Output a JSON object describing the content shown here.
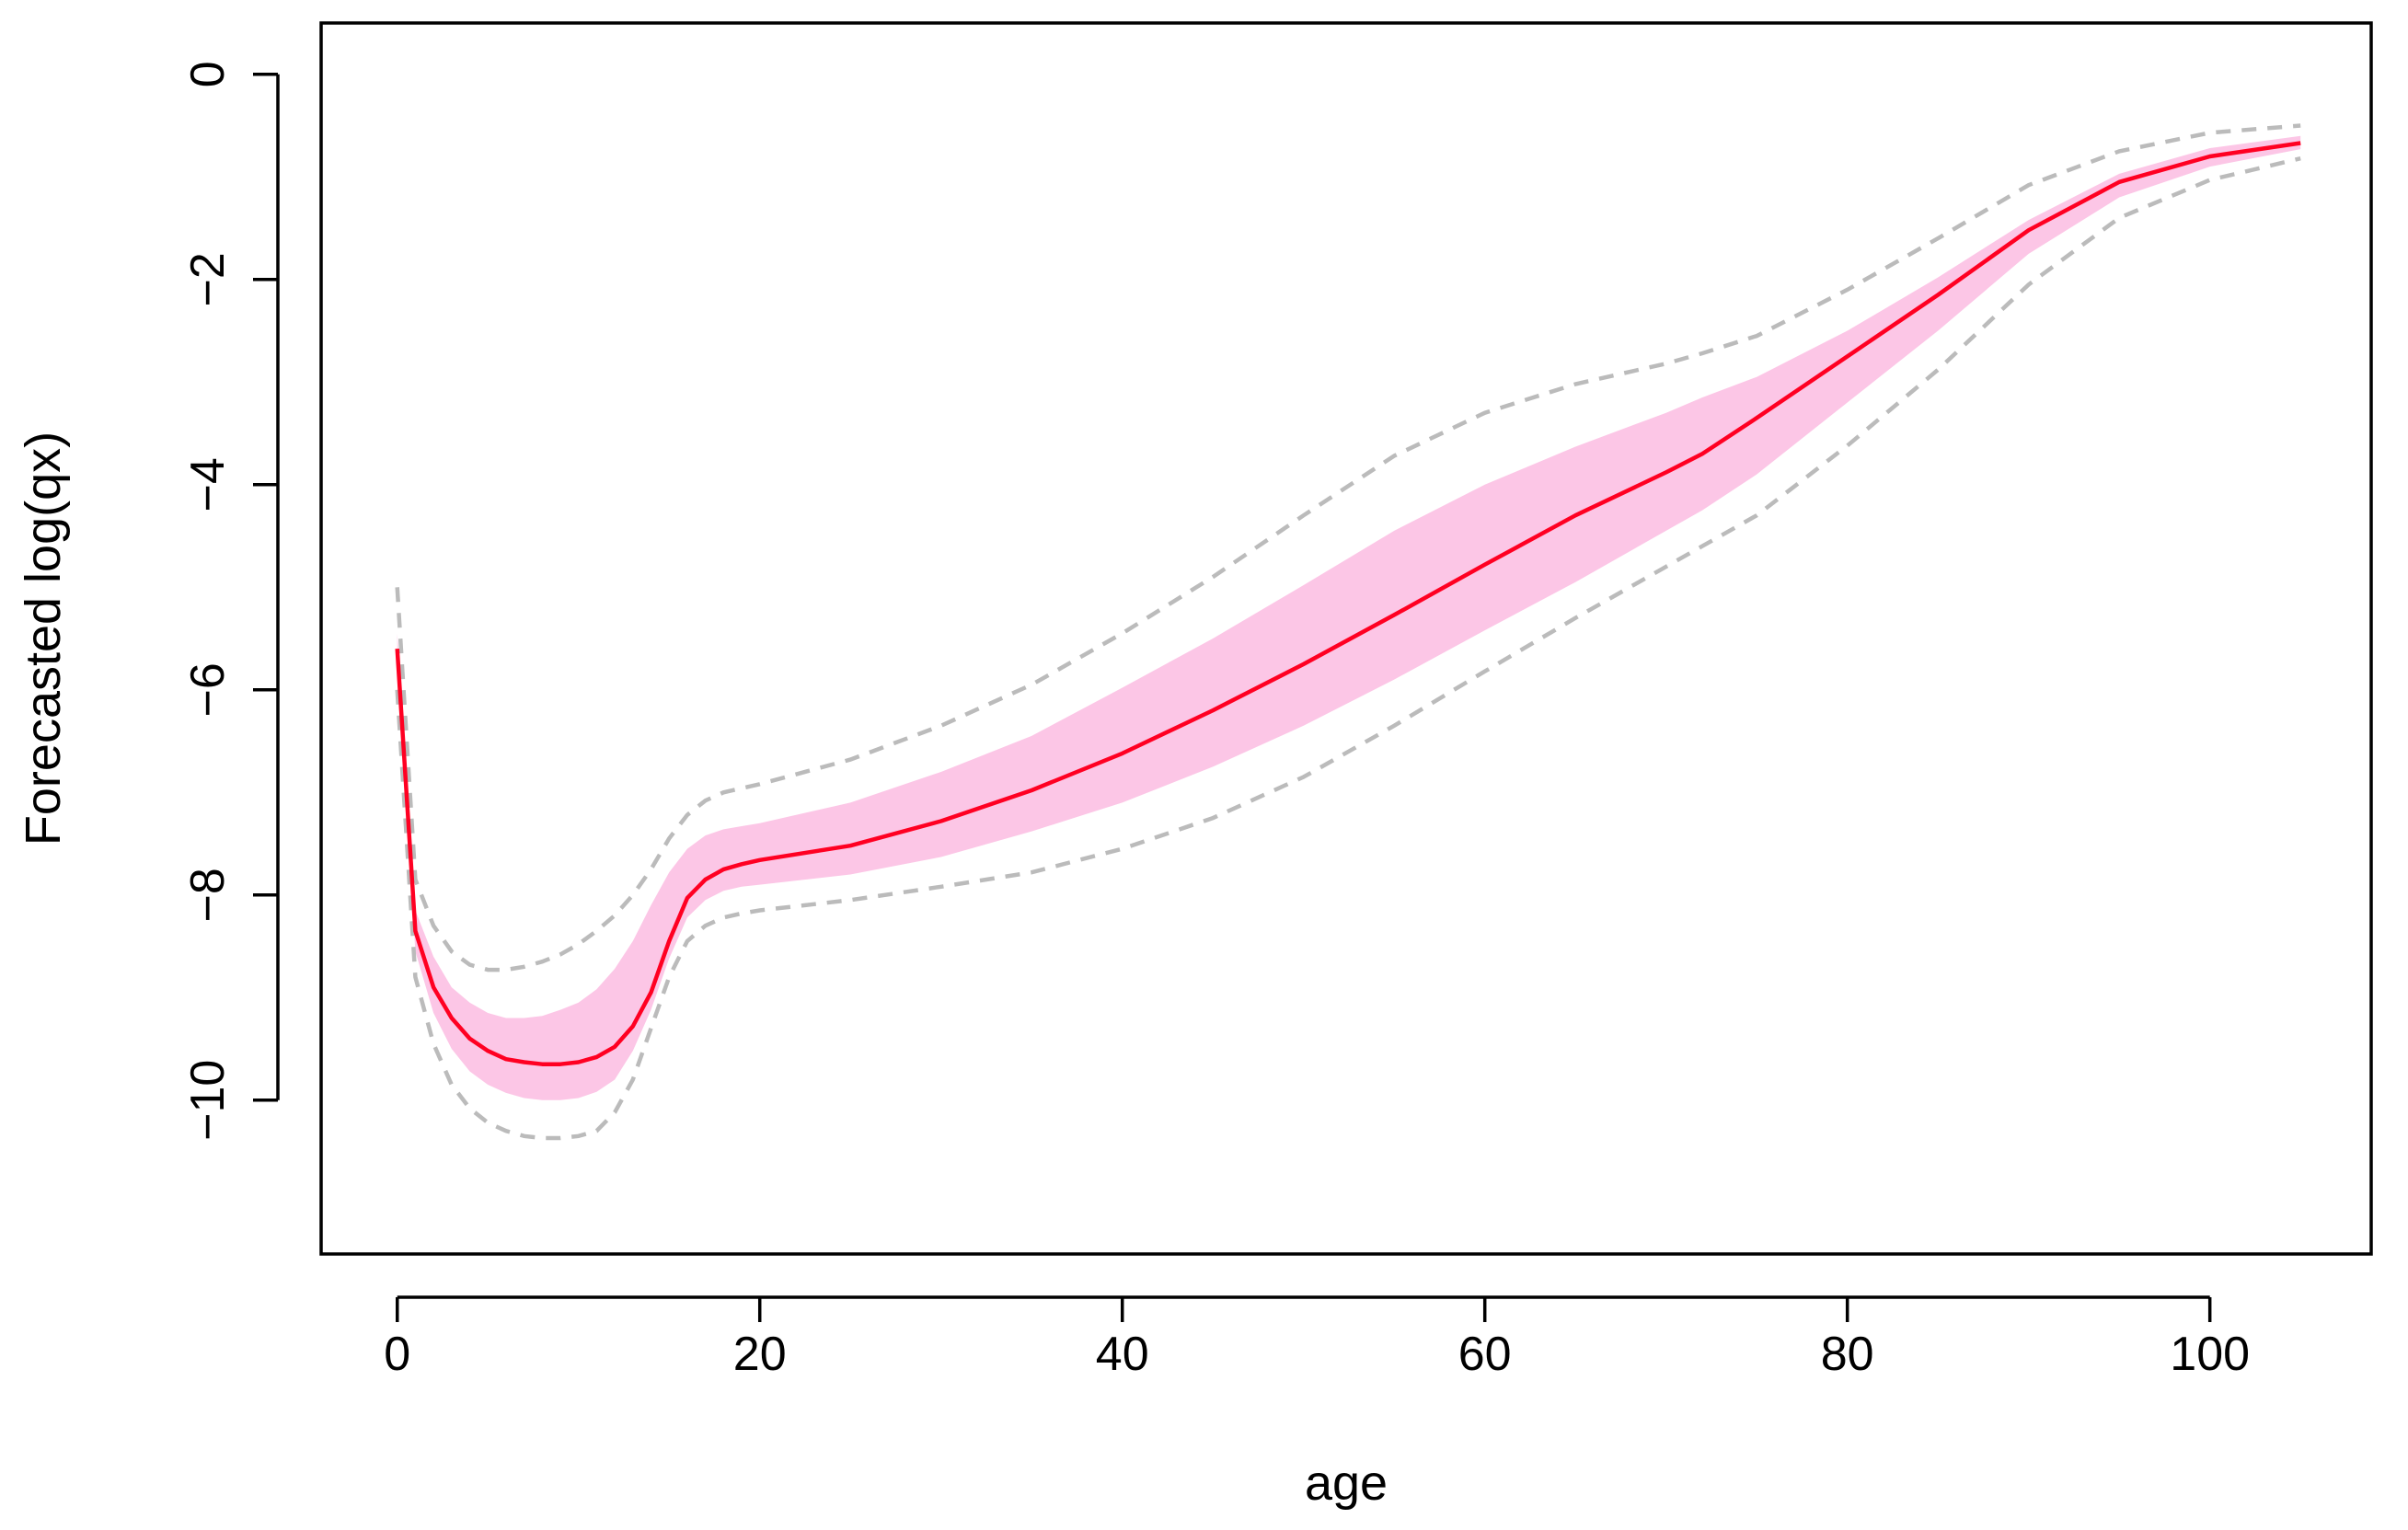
{
  "chart_data": {
    "type": "line",
    "title": "",
    "xlabel": "age",
    "ylabel": "Forecasted log(qx)",
    "xlim": [
      -4.2,
      108.9
    ],
    "ylim": [
      -11.5,
      0.5
    ],
    "x_ticks": [
      0,
      20,
      40,
      60,
      80,
      100
    ],
    "y_ticks": [
      0,
      -2,
      -4,
      -6,
      -8,
      -10
    ],
    "x_tick_labels": [
      "0",
      "20",
      "40",
      "60",
      "80",
      "100"
    ],
    "y_tick_labels": [
      "0",
      "−2",
      "−4",
      "−6",
      "−8",
      "−10"
    ],
    "grid": false,
    "legend": "none",
    "colors": {
      "forecast": "#ff0022",
      "inner_band": "#fcc6e6",
      "outer_band": "#bbbbbb"
    },
    "series": [
      {
        "role": "forecast",
        "x": [
          0,
          1,
          2,
          3,
          4,
          5,
          6,
          7,
          8,
          9,
          10,
          11,
          12,
          13,
          14,
          15,
          16,
          17,
          18,
          19,
          20,
          25,
          30,
          35,
          40,
          45,
          50,
          55,
          60,
          65,
          70,
          72,
          75,
          80,
          85,
          90,
          95,
          100,
          105
        ],
        "values": [
          -5.6,
          -8.35,
          -8.9,
          -9.2,
          -9.4,
          -9.52,
          -9.6,
          -9.63,
          -9.65,
          -9.65,
          -9.63,
          -9.58,
          -9.48,
          -9.28,
          -8.95,
          -8.45,
          -8.03,
          -7.85,
          -7.75,
          -7.7,
          -7.66,
          -7.52,
          -7.28,
          -6.98,
          -6.62,
          -6.2,
          -5.75,
          -5.27,
          -4.78,
          -4.3,
          -3.88,
          -3.7,
          -3.35,
          -2.75,
          -2.15,
          -1.52,
          -1.05,
          -0.8,
          -0.67
        ]
      },
      {
        "role": "inner_band_upper",
        "x": [
          0,
          1,
          2,
          3,
          4,
          5,
          6,
          7,
          8,
          9,
          10,
          11,
          12,
          13,
          14,
          15,
          16,
          17,
          18,
          19,
          20,
          25,
          30,
          35,
          40,
          45,
          50,
          55,
          60,
          65,
          70,
          72,
          75,
          80,
          85,
          90,
          95,
          100,
          105
        ],
        "values": [
          -5.45,
          -8.15,
          -8.6,
          -8.9,
          -9.05,
          -9.15,
          -9.2,
          -9.2,
          -9.18,
          -9.12,
          -9.05,
          -8.92,
          -8.72,
          -8.45,
          -8.1,
          -7.78,
          -7.55,
          -7.42,
          -7.36,
          -7.33,
          -7.3,
          -7.1,
          -6.8,
          -6.45,
          -5.98,
          -5.5,
          -4.98,
          -4.45,
          -4.0,
          -3.63,
          -3.3,
          -3.15,
          -2.95,
          -2.5,
          -1.98,
          -1.42,
          -0.97,
          -0.72,
          -0.6
        ]
      },
      {
        "role": "inner_band_lower",
        "x": [
          0,
          1,
          2,
          3,
          4,
          5,
          6,
          7,
          8,
          9,
          10,
          11,
          12,
          13,
          14,
          15,
          16,
          17,
          18,
          19,
          20,
          25,
          30,
          35,
          40,
          45,
          50,
          55,
          60,
          65,
          70,
          72,
          75,
          80,
          85,
          90,
          95,
          100,
          105
        ],
        "values": [
          -5.75,
          -8.55,
          -9.15,
          -9.5,
          -9.72,
          -9.85,
          -9.93,
          -9.98,
          -10.0,
          -10.0,
          -9.98,
          -9.92,
          -9.8,
          -9.52,
          -9.12,
          -8.62,
          -8.22,
          -8.05,
          -7.96,
          -7.92,
          -7.9,
          -7.8,
          -7.63,
          -7.38,
          -7.1,
          -6.75,
          -6.35,
          -5.9,
          -5.42,
          -4.95,
          -4.45,
          -4.25,
          -3.9,
          -3.2,
          -2.5,
          -1.75,
          -1.2,
          -0.9,
          -0.73
        ]
      },
      {
        "role": "outer_band_upper",
        "x": [
          0,
          1,
          2,
          3,
          4,
          5,
          6,
          7,
          8,
          9,
          10,
          11,
          12,
          13,
          14,
          15,
          16,
          17,
          18,
          19,
          20,
          25,
          30,
          35,
          40,
          45,
          50,
          55,
          60,
          65,
          70,
          72,
          75,
          80,
          85,
          90,
          95,
          100,
          105
        ],
        "values": [
          -5.0,
          -7.85,
          -8.3,
          -8.55,
          -8.68,
          -8.73,
          -8.73,
          -8.7,
          -8.65,
          -8.58,
          -8.48,
          -8.35,
          -8.2,
          -8.0,
          -7.75,
          -7.45,
          -7.22,
          -7.08,
          -7.0,
          -6.96,
          -6.92,
          -6.68,
          -6.35,
          -5.95,
          -5.45,
          -4.9,
          -4.3,
          -3.72,
          -3.3,
          -3.02,
          -2.82,
          -2.72,
          -2.55,
          -2.1,
          -1.6,
          -1.08,
          -0.75,
          -0.57,
          -0.5
        ]
      },
      {
        "role": "outer_band_lower",
        "x": [
          0,
          1,
          2,
          3,
          4,
          5,
          6,
          7,
          8,
          9,
          10,
          11,
          12,
          13,
          14,
          15,
          16,
          17,
          18,
          19,
          20,
          25,
          30,
          35,
          40,
          45,
          50,
          55,
          60,
          65,
          70,
          72,
          75,
          80,
          85,
          90,
          95,
          100,
          105
        ],
        "values": [
          -6.0,
          -8.8,
          -9.45,
          -9.85,
          -10.08,
          -10.22,
          -10.3,
          -10.35,
          -10.37,
          -10.37,
          -10.35,
          -10.3,
          -10.12,
          -9.8,
          -9.3,
          -8.8,
          -8.45,
          -8.3,
          -8.22,
          -8.18,
          -8.15,
          -8.05,
          -7.92,
          -7.78,
          -7.55,
          -7.25,
          -6.85,
          -6.35,
          -5.82,
          -5.3,
          -4.8,
          -4.6,
          -4.3,
          -3.62,
          -2.88,
          -2.05,
          -1.4,
          -1.03,
          -0.82
        ]
      }
    ]
  }
}
